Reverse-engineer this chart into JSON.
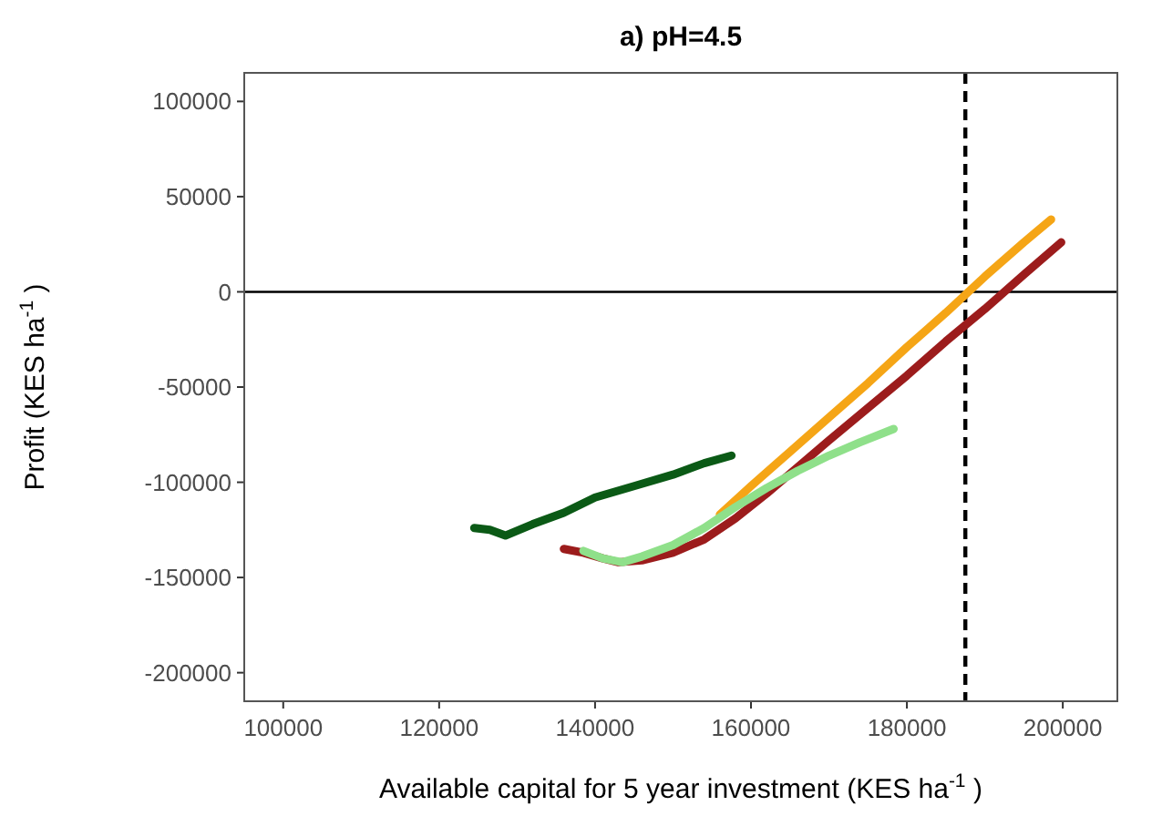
{
  "chart_data": {
    "type": "line",
    "title": "a) pH=4.5",
    "xlabel": "Available capital for 5 year investment (KES ha$^{-1}$ )",
    "ylabel": "Profit (KES ha$^{-1}$ )",
    "xlim": [
      95000,
      207000
    ],
    "xticks": [
      100000,
      120000,
      140000,
      160000,
      180000,
      200000
    ],
    "ylim": [
      -215000,
      115000
    ],
    "yticks": [
      -200000,
      -150000,
      -100000,
      -50000,
      0,
      50000,
      100000
    ],
    "series": [
      {
        "color": "#0b5a16",
        "x": [
          124500,
          126500,
          128500,
          132000,
          136000,
          140000,
          145000,
          150000,
          154000,
          157500
        ],
        "values": [
          -124000,
          -125000,
          -128000,
          -122000,
          -116000,
          -108000,
          -102000,
          -96000,
          -90000,
          -86000
        ]
      },
      {
        "color": "#9c1c1c",
        "x": [
          136000,
          138500,
          141000,
          143000,
          146000,
          150000,
          154000,
          158000,
          162000,
          166000,
          170000,
          175000,
          180000,
          185000,
          190000,
          195000,
          199800
        ],
        "values": [
          -135000,
          -137000,
          -140000,
          -142000,
          -141000,
          -137000,
          -130000,
          -119000,
          -106000,
          -92000,
          -78000,
          -61000,
          -44000,
          -26000,
          -9000,
          9000,
          26000
        ]
      },
      {
        "color": "#f5a516",
        "x": [
          156000,
          160000,
          165000,
          170000,
          175000,
          180000,
          185000,
          190000,
          195000,
          198500
        ],
        "values": [
          -117000,
          -102000,
          -84000,
          -66000,
          -48000,
          -29000,
          -11000,
          8000,
          26000,
          38000
        ]
      },
      {
        "color": "#8fe08a",
        "x": [
          138500,
          141000,
          143500,
          146000,
          150000,
          154000,
          158000,
          162000,
          166000,
          170000,
          174000,
          178300
        ],
        "values": [
          -136000,
          -140000,
          -142000,
          -139000,
          -133000,
          -124000,
          -113000,
          -103000,
          -94000,
          -86000,
          -79000,
          -72000
        ]
      }
    ],
    "ref_lines": [
      {
        "axis": "y",
        "value": 0,
        "color": "#000000",
        "line_style": "solid"
      },
      {
        "axis": "x",
        "value": 187500,
        "color": "#000000",
        "line_style": "dashed"
      }
    ]
  }
}
